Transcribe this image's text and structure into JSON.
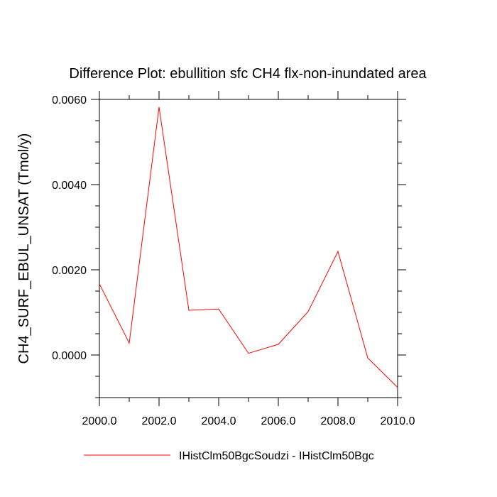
{
  "chart_data": {
    "type": "line",
    "title": "Difference Plot: ebullition sfc CH4 flx-non-inundated area",
    "xlabel": "",
    "ylabel": "CH4_SURF_EBUL_UNSAT  (Tmol/y)",
    "x": [
      2000,
      2001,
      2002,
      2003,
      2004,
      2005,
      2006,
      2007,
      2008,
      2009,
      2010
    ],
    "series": [
      {
        "name": "IHistClm50BgcSoudzi - IHistClm50Bgc",
        "values": [
          0.00167,
          0.00028,
          0.00582,
          0.00105,
          0.00108,
          4e-05,
          0.00025,
          0.00102,
          0.00243,
          -7e-05,
          -0.00076
        ],
        "color": "#ff0000"
      }
    ],
    "xlim": [
      2000,
      2010
    ],
    "ylim": [
      -0.001,
      0.006
    ],
    "x_ticks": [
      "2000.0",
      "2002.0",
      "2004.0",
      "2006.0",
      "2008.0",
      "2010.0"
    ],
    "y_ticks": [
      "0.0000",
      "0.0020",
      "0.0040",
      "0.0060"
    ],
    "grid": false,
    "legend_position": "bottom"
  }
}
